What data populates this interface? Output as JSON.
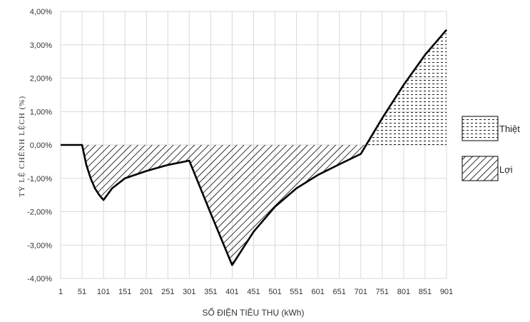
{
  "chart_data": {
    "type": "area",
    "title": "",
    "xlabel": "SỐ ĐIỆN  TIÊU THỤ (kWh)",
    "ylabel": "TỶ LỆ CHÊNH  LỆCH  (%)",
    "x_ticks": [
      "1",
      "51",
      "101",
      "151",
      "201",
      "251",
      "301",
      "351",
      "401",
      "451",
      "501",
      "551",
      "601",
      "651",
      "701",
      "751",
      "801",
      "851",
      "901"
    ],
    "y_ticks": [
      "4,00%",
      "3,00%",
      "2,00%",
      "1,00%",
      "0,00%",
      "-1,00%",
      "-2,00%",
      "-3,00%",
      "-4,00%"
    ],
    "xlim": [
      1,
      901
    ],
    "ylim": [
      -4,
      4
    ],
    "grid": true,
    "legend_position": "right",
    "series": [
      {
        "name": "",
        "line_color": "#000000",
        "x": [
          1,
          51,
          61,
          71,
          81,
          91,
          101,
          121,
          151,
          201,
          251,
          301,
          351,
          401,
          451,
          501,
          551,
          601,
          651,
          701,
          751,
          801,
          851,
          901
        ],
        "y": [
          0,
          0,
          -0.6,
          -1.0,
          -1.3,
          -1.5,
          -1.65,
          -1.3,
          -1.0,
          -0.78,
          -0.6,
          -0.47,
          -2.05,
          -3.6,
          -2.6,
          -1.85,
          -1.3,
          -0.9,
          -0.58,
          -0.27,
          0.8,
          1.8,
          2.7,
          3.45
        ]
      }
    ],
    "legend": [
      {
        "label": "Thiệt",
        "pattern": "dots",
        "meaning": "positive"
      },
      {
        "label": "Lợi",
        "pattern": "diagonal",
        "meaning": "negative"
      }
    ]
  }
}
